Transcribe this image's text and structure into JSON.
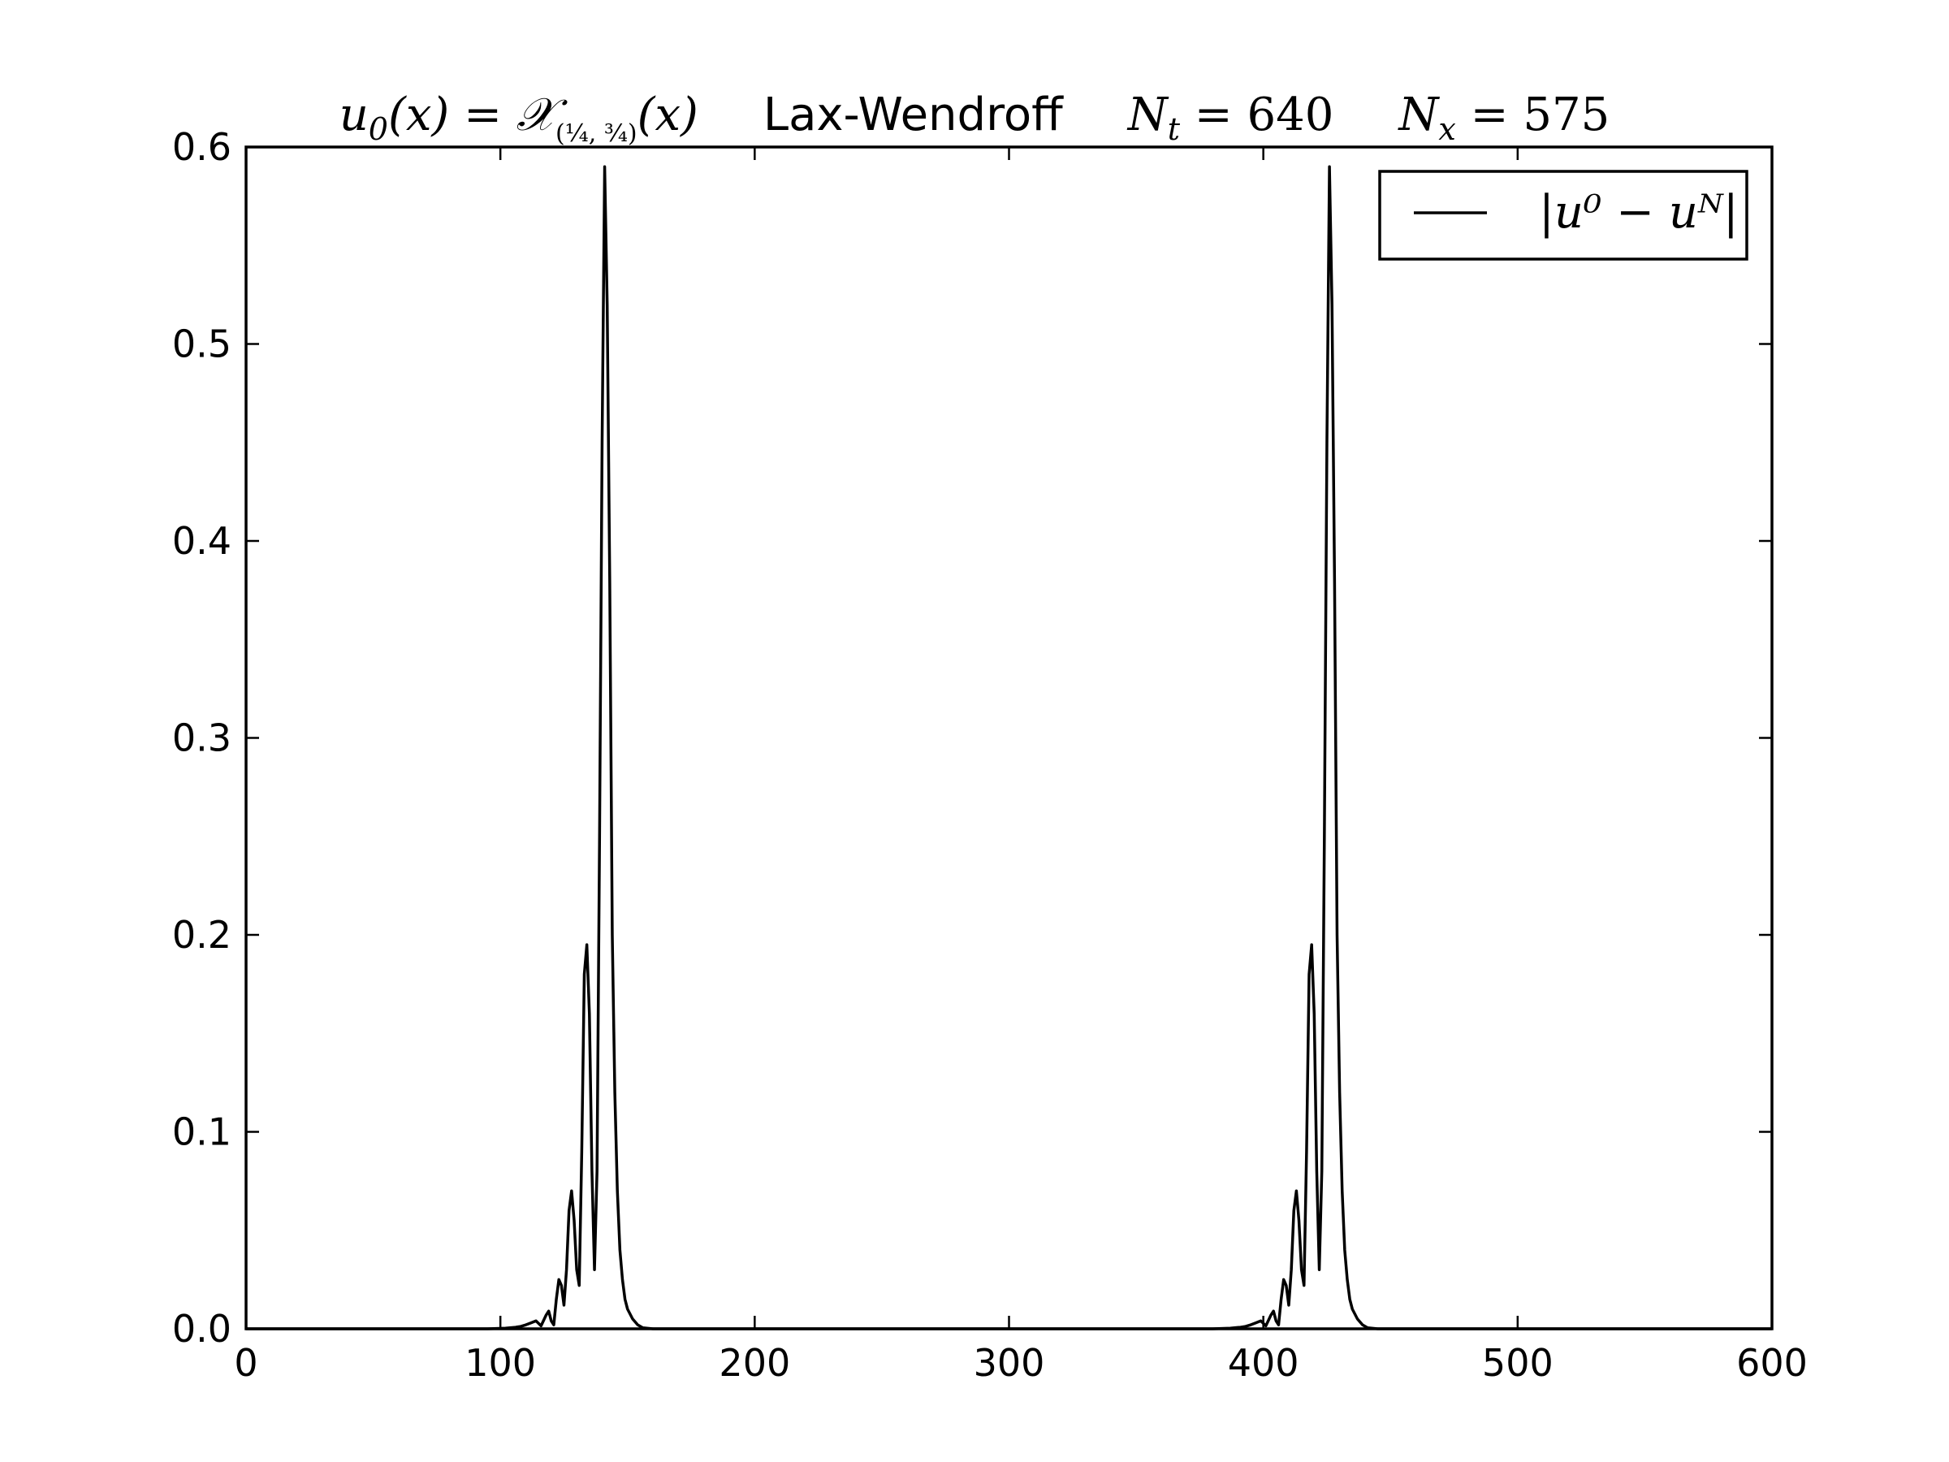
{
  "chart_data": {
    "type": "line",
    "title": {
      "parts": [
        "u",
        "0",
        "(x) = ",
        "𝒳",
        "(¼, ¾)",
        "(x)",
        "Lax-Wendroff",
        "N",
        "t",
        " = 640",
        "N",
        "x",
        " = 575"
      ],
      "method": "Lax-Wendroff",
      "Nt": "640",
      "Nx": "575"
    },
    "xlabel": "",
    "ylabel": "",
    "xlim": [
      0,
      600
    ],
    "ylim": [
      0,
      0.6
    ],
    "x_ticks": [
      "0",
      "100",
      "200",
      "300",
      "400",
      "500",
      "600"
    ],
    "y_ticks": [
      "0.0",
      "0.1",
      "0.2",
      "0.3",
      "0.4",
      "0.5",
      "0.6"
    ],
    "x_tick_values": [
      0,
      100,
      200,
      300,
      400,
      500,
      600
    ],
    "y_tick_values": [
      0,
      0.1,
      0.2,
      0.3,
      0.4,
      0.5,
      0.6
    ],
    "grid": false,
    "legend_position": "top-right",
    "line_color": "#000000",
    "series": [
      {
        "name": "|u⁰ − uᴺ|",
        "x": [
          0,
          95,
          102,
          106,
          108,
          110,
          112,
          114,
          116,
          118,
          119,
          120,
          121,
          122,
          123,
          124,
          125,
          126,
          127,
          128,
          129,
          130,
          131,
          132,
          133,
          134,
          135,
          136,
          137,
          138,
          139,
          140,
          141,
          142,
          143,
          144,
          145,
          146,
          147,
          148,
          149,
          150,
          152,
          154,
          156,
          160,
          170,
          380,
          387,
          391,
          393,
          395,
          397,
          399,
          401,
          403,
          404,
          405,
          406,
          407,
          408,
          409,
          410,
          411,
          412,
          413,
          414,
          415,
          416,
          417,
          418,
          419,
          420,
          421,
          422,
          423,
          424,
          425,
          426,
          427,
          428,
          429,
          430,
          431,
          432,
          433,
          434,
          435,
          437,
          439,
          441,
          445,
          455,
          600
        ],
        "y": [
          0,
          0,
          0.0003,
          0.0008,
          0.0012,
          0.002,
          0.003,
          0.004,
          0.0015,
          0.007,
          0.009,
          0.004,
          0.002,
          0.015,
          0.025,
          0.022,
          0.012,
          0.03,
          0.06,
          0.07,
          0.055,
          0.03,
          0.022,
          0.09,
          0.18,
          0.195,
          0.16,
          0.08,
          0.03,
          0.08,
          0.25,
          0.45,
          0.59,
          0.52,
          0.38,
          0.2,
          0.12,
          0.07,
          0.04,
          0.025,
          0.015,
          0.01,
          0.005,
          0.002,
          0.0005,
          0,
          0,
          0,
          0.0003,
          0.0008,
          0.0012,
          0.002,
          0.003,
          0.004,
          0.0015,
          0.007,
          0.009,
          0.004,
          0.002,
          0.015,
          0.025,
          0.022,
          0.012,
          0.03,
          0.06,
          0.07,
          0.055,
          0.03,
          0.022,
          0.09,
          0.18,
          0.195,
          0.16,
          0.08,
          0.03,
          0.08,
          0.25,
          0.45,
          0.59,
          0.52,
          0.38,
          0.2,
          0.12,
          0.07,
          0.04,
          0.025,
          0.015,
          0.01,
          0.005,
          0.002,
          0.0005,
          0,
          0,
          0
        ]
      }
    ]
  }
}
